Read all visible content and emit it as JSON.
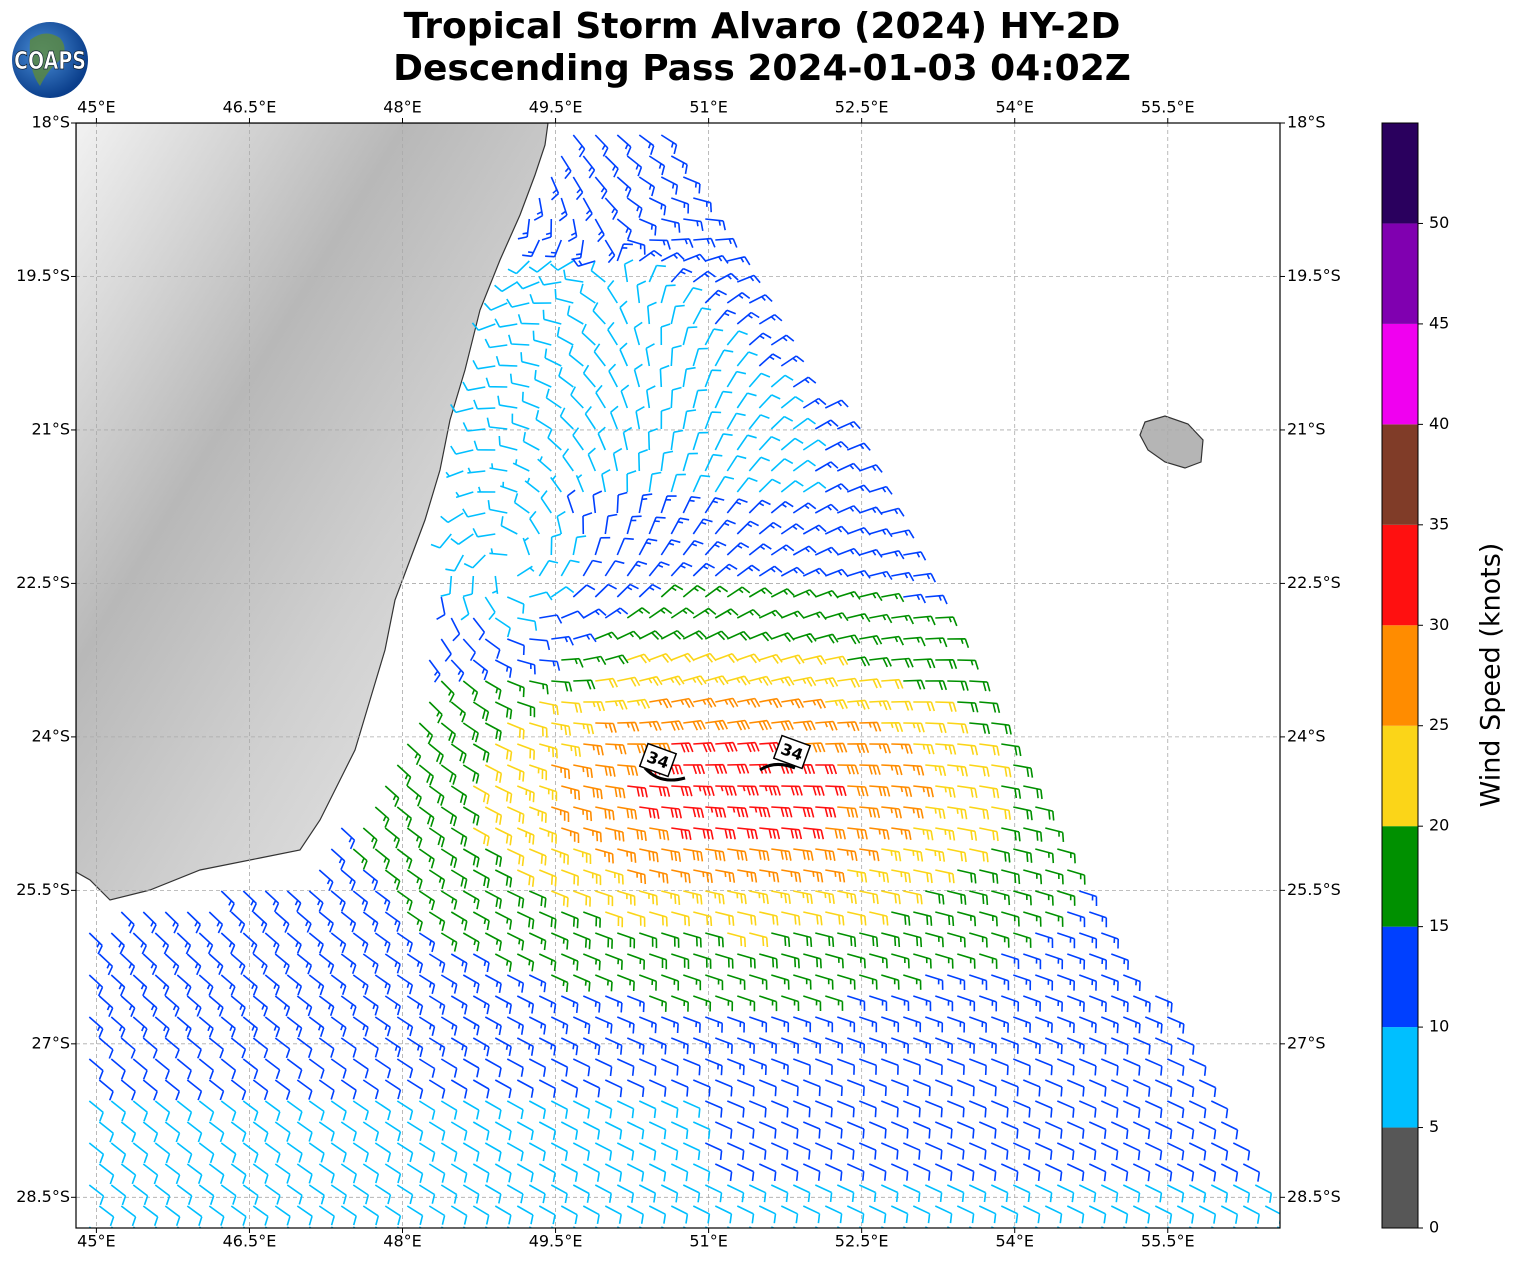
{
  "header": {
    "title_line1": "Tropical Storm Alvaro (2024) HY-2D",
    "title_line2": "Descending Pass 2024-01-03 04:02Z",
    "logo": "COAPS"
  },
  "map": {
    "xlim": [
      44.8,
      56.6
    ],
    "ylim": [
      -28.8,
      -18
    ],
    "grid": true,
    "lon_ticks": [
      {
        "value": 45,
        "label": "45°E"
      },
      {
        "value": 46.5,
        "label": "46.5°E"
      },
      {
        "value": 48,
        "label": "48°E"
      },
      {
        "value": 49.5,
        "label": "49.5°E"
      },
      {
        "value": 51,
        "label": "51°E"
      },
      {
        "value": 52.5,
        "label": "52.5°E"
      },
      {
        "value": 54,
        "label": "54°E"
      },
      {
        "value": 55.5,
        "label": "55.5°E"
      }
    ],
    "lat_ticks": [
      {
        "value": -18,
        "label": "18°S"
      },
      {
        "value": -19.5,
        "label": "19.5°S"
      },
      {
        "value": -21,
        "label": "21°S"
      },
      {
        "value": -22.5,
        "label": "22.5°S"
      },
      {
        "value": -24,
        "label": "24°S"
      },
      {
        "value": -25.5,
        "label": "25.5°S"
      },
      {
        "value": -27,
        "label": "27°S"
      },
      {
        "value": -28.5,
        "label": "28.5°S"
      }
    ],
    "contour_labels": [
      "34",
      "34"
    ]
  },
  "colorbar": {
    "label": "Wind Speed (knots)",
    "lim": [
      0,
      55
    ],
    "levels": [
      0,
      5,
      10,
      15,
      20,
      25,
      30,
      35,
      40,
      45,
      50,
      55
    ],
    "colors": [
      "#575757",
      "#00bfff",
      "#0040ff",
      "#009000",
      "#fbd518",
      "#ff8c00",
      "#ff1010",
      "#803c28",
      "#f000f0",
      "#8000b0",
      "#2a005e"
    ],
    "ticks": [
      0,
      5,
      10,
      15,
      20,
      25,
      30,
      35,
      40,
      45,
      50
    ]
  }
}
